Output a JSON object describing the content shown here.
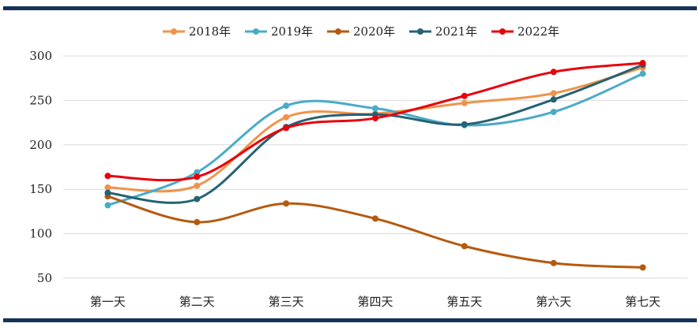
{
  "chart_data": {
    "type": "line",
    "smooth": true,
    "categories": [
      "第一天",
      "第二天",
      "第三天",
      "第四天",
      "第五天",
      "第六天",
      "第七天"
    ],
    "ylim": [
      50,
      300
    ],
    "yticks": [
      50,
      100,
      150,
      200,
      250,
      300
    ],
    "grid": true,
    "legend_position": "top-center",
    "series": [
      {
        "name": "2018年",
        "color": "#f0934a",
        "values": [
          152,
          154,
          231,
          235,
          247,
          258,
          287
        ]
      },
      {
        "name": "2019年",
        "color": "#4aabc7",
        "values": [
          132,
          169,
          244,
          241,
          222,
          237,
          280
        ]
      },
      {
        "name": "2020年",
        "color": "#b55a0f",
        "values": [
          142,
          113,
          134,
          117,
          86,
          67,
          62
        ]
      },
      {
        "name": "2021年",
        "color": "#256273",
        "values": [
          146,
          139,
          220,
          234,
          223,
          251,
          290
        ]
      },
      {
        "name": "2022年",
        "color": "#e8000b",
        "values": [
          165,
          164,
          219,
          230,
          255,
          282,
          292
        ]
      }
    ]
  }
}
